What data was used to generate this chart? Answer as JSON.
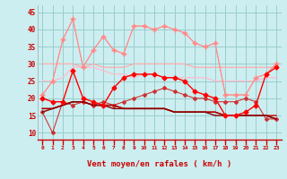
{
  "xlabel": "Vent moyen/en rafales ( km/h )",
  "ylim": [
    8,
    47
  ],
  "xlim": [
    -0.5,
    23.5
  ],
  "yticks": [
    10,
    15,
    20,
    25,
    30,
    35,
    40,
    45
  ],
  "xticks": [
    0,
    1,
    2,
    3,
    4,
    5,
    6,
    7,
    8,
    9,
    10,
    11,
    12,
    13,
    14,
    15,
    16,
    17,
    18,
    19,
    20,
    21,
    22,
    23
  ],
  "bg_color": "#cceef0",
  "grid_color": "#99cccc",
  "series": [
    {
      "y": [
        null,
        null,
        null,
        43,
        null,
        null,
        null,
        null,
        null,
        null,
        null,
        null,
        null,
        null,
        null,
        null,
        null,
        null,
        null,
        null,
        null,
        null,
        null,
        null
      ],
      "y_full": [
        21,
        25,
        37,
        43,
        29,
        34,
        38,
        34,
        33,
        41,
        41,
        40,
        41,
        40,
        39,
        36,
        35,
        36,
        21,
        21,
        21,
        26,
        27,
        30
      ],
      "color": "#ff9999",
      "lw": 0.8,
      "marker": "o",
      "ms": 2.0,
      "zorder": 3
    },
    {
      "y_full": [
        30,
        30,
        30,
        30,
        29,
        30,
        29,
        29,
        29,
        30,
        30,
        30,
        30,
        30,
        30,
        29,
        29,
        29,
        29,
        29,
        29,
        29,
        29,
        29
      ],
      "color": "#ffaaaa",
      "lw": 0.9,
      "marker": null,
      "ms": 0,
      "zorder": 2
    },
    {
      "y_full": [
        25,
        25,
        26,
        29,
        29,
        29,
        28,
        27,
        27,
        26,
        27,
        27,
        26,
        26,
        26,
        26,
        26,
        25,
        25,
        25,
        25,
        25,
        26,
        26
      ],
      "color": "#ffbbcc",
      "lw": 0.9,
      "marker": null,
      "ms": 0,
      "zorder": 2
    },
    {
      "y_full": [
        20,
        19,
        19,
        28,
        20,
        19,
        18,
        23,
        26,
        27,
        27,
        27,
        26,
        26,
        25,
        22,
        21,
        20,
        15,
        15,
        16,
        18,
        27,
        29
      ],
      "color": "#ff0000",
      "lw": 1.0,
      "marker": "D",
      "ms": 2.5,
      "zorder": 6
    },
    {
      "y_full": [
        17,
        17,
        18,
        19,
        19,
        18,
        18,
        18,
        17,
        17,
        17,
        17,
        17,
        16,
        16,
        16,
        16,
        16,
        15,
        15,
        15,
        15,
        15,
        15
      ],
      "color": "#cc0000",
      "lw": 1.0,
      "marker": null,
      "ms": 0,
      "zorder": 5
    },
    {
      "y_full": [
        17,
        17,
        18,
        19,
        19,
        18,
        18,
        18,
        17,
        17,
        17,
        17,
        17,
        16,
        16,
        16,
        16,
        16,
        15,
        15,
        15,
        15,
        15,
        14
      ],
      "color": "#aa0000",
      "lw": 1.0,
      "marker": null,
      "ms": 0,
      "zorder": 5
    },
    {
      "y_full": [
        16,
        17,
        18,
        19,
        19,
        18,
        18,
        17,
        17,
        17,
        17,
        17,
        17,
        16,
        16,
        16,
        16,
        15,
        15,
        15,
        15,
        15,
        15,
        14
      ],
      "color": "#880000",
      "lw": 1.0,
      "marker": null,
      "ms": 0,
      "zorder": 5
    },
    {
      "y_full": [
        21,
        25,
        37,
        43,
        29,
        34,
        38,
        34,
        33,
        41,
        41,
        40,
        41,
        40,
        39,
        36,
        35,
        36,
        21,
        21,
        21,
        26,
        27,
        30
      ],
      "color": "#ff8888",
      "lw": 0.7,
      "marker": "+",
      "ms": 4,
      "zorder": 4
    },
    {
      "y_full": [
        16,
        10,
        19,
        18,
        19,
        18,
        19,
        18,
        19,
        20,
        21,
        22,
        23,
        22,
        21,
        20,
        20,
        19,
        19,
        19,
        20,
        19,
        14,
        14
      ],
      "color": "#cc3333",
      "lw": 0.8,
      "marker": "D",
      "ms": 2.0,
      "zorder": 5
    }
  ]
}
